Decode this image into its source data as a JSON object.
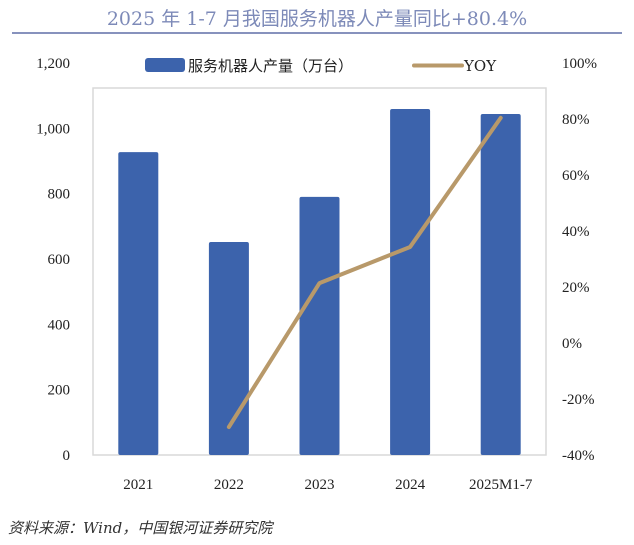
{
  "title": "2025 年 1-7 月我国服务机器人产量同比+80.4%",
  "source": "资料来源：Wind，中国银河证券研究院",
  "chart_data": {
    "type": "bar+line",
    "title": "2025 年 1-7 月我国服务机器人产量同比+80.4%",
    "categories": [
      "2021",
      "2022",
      "2023",
      "2024",
      "2025M1-7"
    ],
    "series": [
      {
        "name": "服务机器人产量（万台）",
        "type": "bar",
        "axis": "left",
        "color": "#3c63ac",
        "values": [
          927,
          652,
          790,
          1059,
          1044
        ]
      },
      {
        "name": "YOY",
        "type": "line",
        "axis": "right",
        "color": "#b8996a",
        "values": [
          null,
          -30.0,
          21.4,
          34.3,
          80.4
        ]
      }
    ],
    "left_axis": {
      "range": [
        0,
        1200
      ],
      "ticks": [
        "0",
        "200",
        "400",
        "600",
        "800",
        "1,000",
        "1,200"
      ]
    },
    "right_axis": {
      "range": [
        -40,
        100
      ],
      "ticks": [
        "-40%",
        "-20%",
        "0%",
        "20%",
        "40%",
        "60%",
        "80%",
        "100%"
      ]
    },
    "legend": "top",
    "grid": false
  }
}
